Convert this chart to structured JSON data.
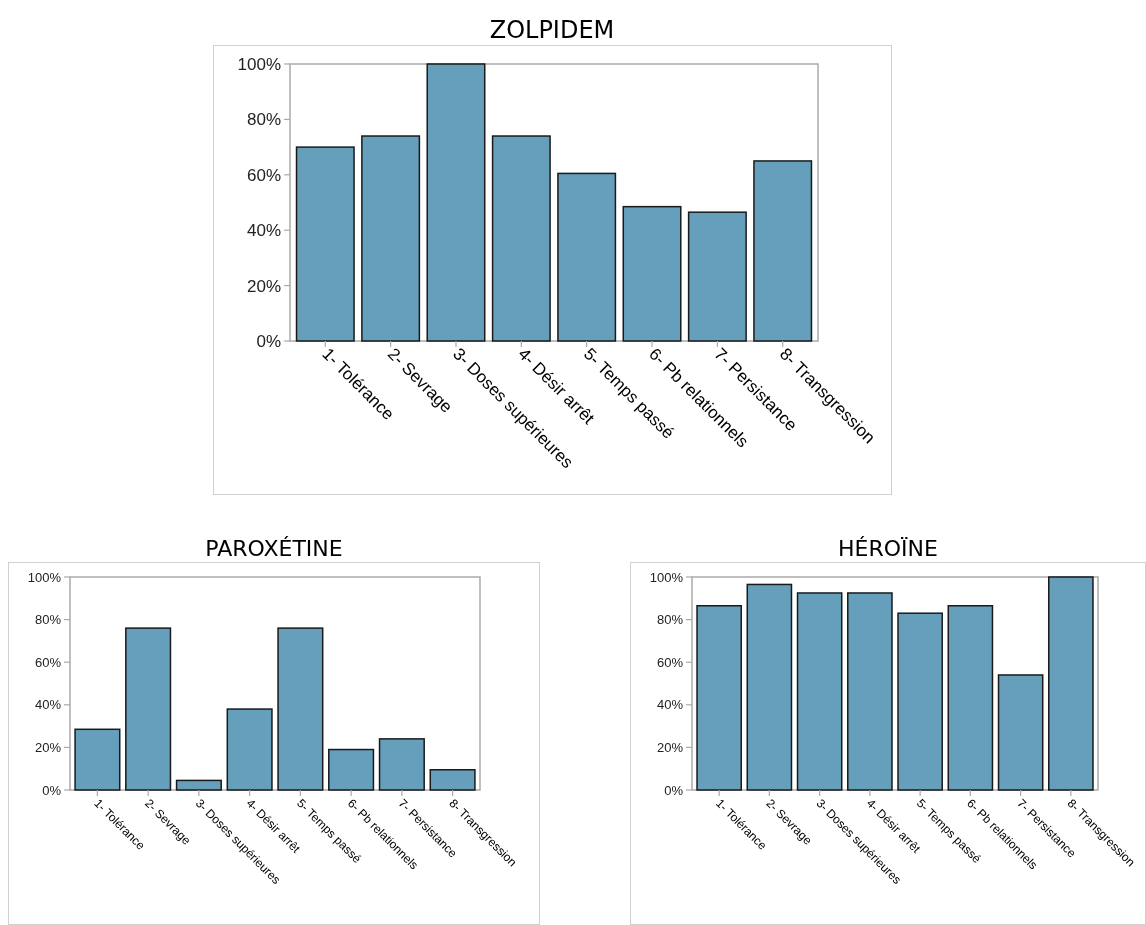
{
  "chart_data": [
    {
      "type": "bar",
      "title": "ZOLPIDEM",
      "categories": [
        "1- Tolérance",
        "2- Sevrage",
        "3- Doses supérieures",
        "4- Désir arrêt",
        "5- Temps passé",
        "6- Pb relationnels",
        "7- Persistance",
        "8- Transgression"
      ],
      "values": [
        70,
        74,
        100,
        74,
        60.5,
        48.5,
        46.5,
        65
      ],
      "color": "#659fbb",
      "ylim": [
        0,
        100
      ],
      "yticks": [
        {
          "value": 0,
          "label": "0%"
        },
        {
          "value": 20,
          "label": "20%"
        },
        {
          "value": 40,
          "label": "40%"
        },
        {
          "value": 60,
          "label": "60%"
        },
        {
          "value": 80,
          "label": "80%"
        },
        {
          "value": 100,
          "label": "100%"
        }
      ],
      "grid": false
    },
    {
      "type": "bar",
      "title": "PAROXÉTINE",
      "categories": [
        "1- Tolérance",
        "2- Sevrage",
        "3- Doses supérieures",
        "4- Désir arrêt",
        "5- Temps passé",
        "6- Pb relationnels",
        "7- Persistance",
        "8- Transgression"
      ],
      "values": [
        28.5,
        76,
        4.5,
        38,
        76,
        19,
        24,
        9.5
      ],
      "color": "#659fbb",
      "ylim": [
        0,
        100
      ],
      "yticks": [
        {
          "value": 0,
          "label": "0%"
        },
        {
          "value": 20,
          "label": "20%"
        },
        {
          "value": 40,
          "label": "40%"
        },
        {
          "value": 60,
          "label": "60%"
        },
        {
          "value": 80,
          "label": "80%"
        },
        {
          "value": 100,
          "label": "100%"
        }
      ],
      "grid": false
    },
    {
      "type": "bar",
      "title": "HÉROÏNE",
      "categories": [
        "1- Tolérance",
        "2- Sevrage",
        "3- Doses supérieures",
        "4- Désir arrêt",
        "5- Temps passé",
        "6- Pb relationnels",
        "7- Persistance",
        "8- Transgression"
      ],
      "values": [
        86.5,
        96.5,
        92.5,
        92.5,
        83,
        86.5,
        54,
        100
      ],
      "color": "#659fbb",
      "ylim": [
        0,
        100
      ],
      "yticks": [
        {
          "value": 0,
          "label": "0%"
        },
        {
          "value": 20,
          "label": "20%"
        },
        {
          "value": 40,
          "label": "40%"
        },
        {
          "value": 60,
          "label": "60%"
        },
        {
          "value": 80,
          "label": "80%"
        },
        {
          "value": 100,
          "label": "100%"
        }
      ],
      "grid": false
    }
  ]
}
